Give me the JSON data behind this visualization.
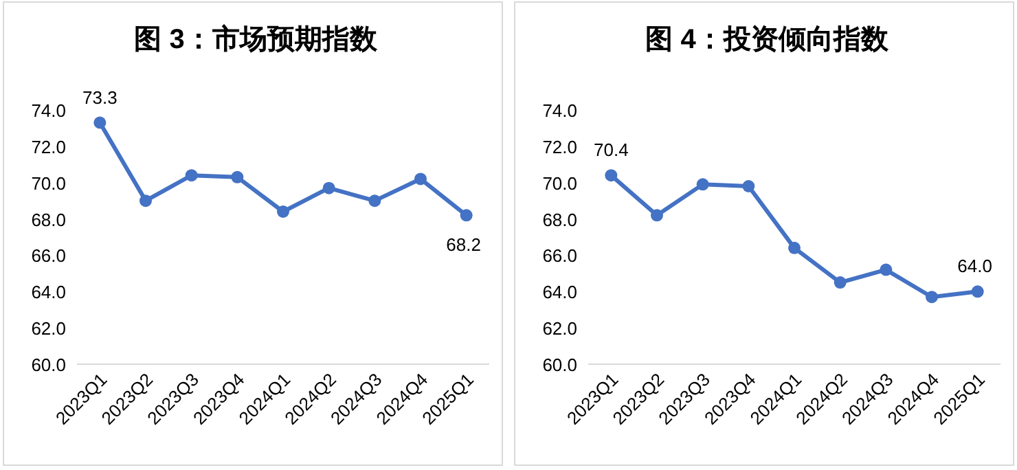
{
  "chart_data": [
    {
      "type": "line",
      "title": "图 3：市场预期指数",
      "categories": [
        "2023Q1",
        "2023Q2",
        "2023Q3",
        "2023Q4",
        "2024Q1",
        "2024Q2",
        "2024Q3",
        "2024Q4",
        "2025Q1"
      ],
      "color": "#4472c4",
      "marker": "circle",
      "values": [
        73.3,
        69.0,
        70.4,
        70.3,
        68.4,
        69.7,
        69.0,
        70.2,
        68.2
      ],
      "value_labels": [
        "73.3",
        null,
        null,
        null,
        null,
        null,
        null,
        null,
        "68.2"
      ],
      "ylim": [
        60,
        74
      ],
      "yticks": [
        {
          "value": 60,
          "label": "60.0"
        },
        {
          "value": 62,
          "label": "62.0"
        },
        {
          "value": 64,
          "label": "64.0"
        },
        {
          "value": 66,
          "label": "66.0"
        },
        {
          "value": 68,
          "label": "68.0"
        },
        {
          "value": 70,
          "label": "70.0"
        },
        {
          "value": 72,
          "label": "72.0"
        },
        {
          "value": 74,
          "label": "74.0"
        }
      ]
    },
    {
      "type": "line",
      "title": "图 4：投资倾向指数",
      "categories": [
        "2023Q1",
        "2023Q2",
        "2023Q3",
        "2023Q4",
        "2024Q1",
        "2024Q2",
        "2024Q3",
        "2024Q4",
        "2025Q1"
      ],
      "color": "#4472c4",
      "marker": "circle",
      "values": [
        70.4,
        68.2,
        69.9,
        69.8,
        66.4,
        64.5,
        65.2,
        63.7,
        64.0
      ],
      "value_labels": [
        "70.4",
        null,
        null,
        null,
        null,
        null,
        null,
        null,
        "64.0"
      ],
      "ylim": [
        60,
        74
      ],
      "yticks": [
        {
          "value": 60,
          "label": "60.0"
        },
        {
          "value": 62,
          "label": "62.0"
        },
        {
          "value": 64,
          "label": "64.0"
        },
        {
          "value": 66,
          "label": "66.0"
        },
        {
          "value": 68,
          "label": "68.0"
        },
        {
          "value": 70,
          "label": "70.0"
        },
        {
          "value": 72,
          "label": "72.0"
        },
        {
          "value": 74,
          "label": "74.0"
        }
      ]
    }
  ]
}
